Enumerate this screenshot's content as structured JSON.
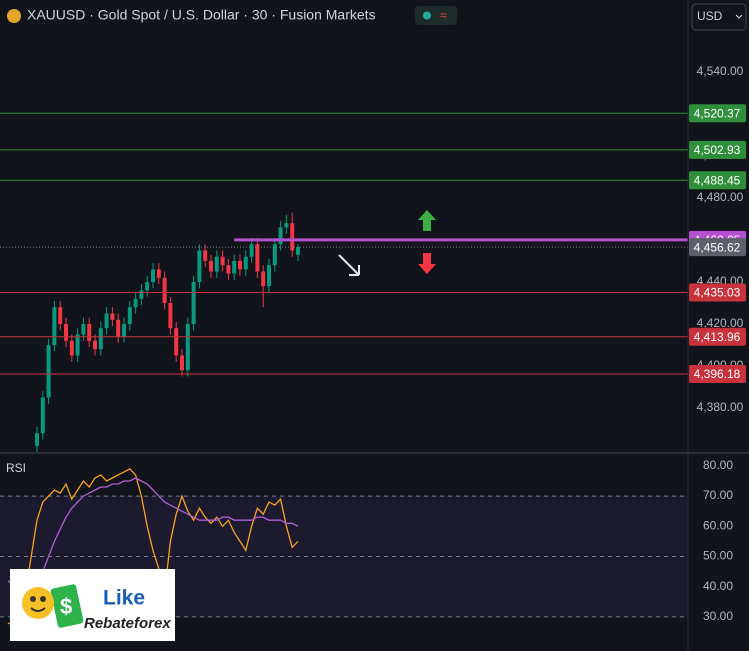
{
  "chart_data": [
    {
      "type": "candlestick",
      "title": "XAUUSD · Gold Spot / U.S. Dollar · 30 · Fusion Markets",
      "currency": "USD",
      "up_color": "#089981",
      "down_color": "#f23645",
      "open": [
        4362,
        4368,
        4385,
        4410,
        4428,
        4420,
        4412,
        4405,
        4415,
        4420,
        4412,
        4408,
        4418,
        4425,
        4422,
        4414,
        4420,
        4428,
        4432,
        4436,
        4440,
        4446,
        4442,
        4430,
        4418,
        4405,
        4398,
        4420,
        4440,
        4455,
        4450,
        4445,
        4452,
        4448,
        4444,
        4450,
        4446,
        4452,
        4458,
        4445,
        4438,
        4448,
        4458,
        4466,
        4468,
        4453
      ],
      "high": [
        4371,
        4388,
        4413,
        4431,
        4431,
        4423,
        4415,
        4418,
        4423,
        4423,
        4415,
        4421,
        4428,
        4428,
        4425,
        4423,
        4431,
        4435,
        4439,
        4443,
        4449,
        4449,
        4445,
        4433,
        4421,
        4408,
        4423,
        4443,
        4458,
        4458,
        4453,
        4455,
        4455,
        4451,
        4453,
        4453,
        4455,
        4461,
        4461,
        4448,
        4451,
        4461,
        4469,
        4472,
        4473,
        4458
      ],
      "low": [
        4359,
        4365,
        4382,
        4407,
        4417,
        4409,
        4402,
        4402,
        4412,
        4409,
        4405,
        4405,
        4415,
        4419,
        4411,
        4411,
        4417,
        4425,
        4429,
        4433,
        4437,
        4439,
        4427,
        4415,
        4402,
        4395,
        4395,
        4417,
        4437,
        4447,
        4442,
        4442,
        4445,
        4441,
        4441,
        4443,
        4443,
        4449,
        4442,
        4428,
        4435,
        4445,
        4455,
        4463,
        4452,
        4450
      ],
      "close": [
        4368,
        4385,
        4410,
        4428,
        4420,
        4412,
        4405,
        4415,
        4420,
        4412,
        4408,
        4418,
        4425,
        4422,
        4414,
        4420,
        4428,
        4432,
        4436,
        4440,
        4446,
        4442,
        4430,
        4418,
        4405,
        4398,
        4420,
        4440,
        4455,
        4450,
        4445,
        4452,
        4448,
        4444,
        4450,
        4446,
        4452,
        4458,
        4445,
        4438,
        4448,
        4458,
        4466,
        4468,
        4455,
        4456.62
      ],
      "ylim": [
        4359.05,
        4574.29
      ],
      "yticks": [
        {
          "value": 4380,
          "label": "4,380.00"
        },
        {
          "value": 4400,
          "label": "4,400.00"
        },
        {
          "value": 4420,
          "label": "4,420.00"
        },
        {
          "value": 4440,
          "label": "4,440.00"
        },
        {
          "value": 4460,
          "label": "4,460.00"
        },
        {
          "value": 4480,
          "label": "4,480.00"
        },
        {
          "value": 4500,
          "label": "4,500.00"
        },
        {
          "value": 4520,
          "label": "4,520.00"
        },
        {
          "value": 4540,
          "label": "4,540.00"
        }
      ],
      "levels": [
        {
          "value": 4520.37,
          "label": "4,520.37",
          "color": "#2f8f3a"
        },
        {
          "value": 4502.93,
          "label": "4,502.93",
          "color": "#2f8f3a"
        },
        {
          "value": 4488.45,
          "label": "4,488.45",
          "color": "#2f8f3a"
        },
        {
          "value": 4460.05,
          "label": "4,460.05",
          "color": "#b34fd0"
        },
        {
          "value": 4435.03,
          "label": "4,435.03",
          "color": "#c8323c"
        },
        {
          "value": 4413.96,
          "label": "4,413.96",
          "color": "#c8323c"
        },
        {
          "value": 4396.18,
          "label": "4,396.18",
          "color": "#c8323c"
        }
      ],
      "current_price": {
        "value": 4456.62,
        "label": "4,456.62",
        "color": "#5d606b"
      }
    },
    {
      "type": "line",
      "title": "RSI",
      "series": [
        {
          "color": "#f7a21b",
          "values": [
            28,
            27,
            30,
            38,
            50,
            62,
            68,
            70,
            72,
            71,
            74,
            69,
            72,
            75,
            73,
            76,
            77,
            75,
            76,
            77,
            78,
            79,
            77,
            70,
            60,
            52,
            46,
            38,
            55,
            64,
            70,
            65,
            62,
            66,
            63,
            61,
            63,
            60,
            62,
            58,
            55,
            52,
            60,
            66,
            64,
            68,
            67,
            69,
            60,
            53,
            55
          ]
        },
        {
          "color": "#b05ed6",
          "values": [
            42,
            40,
            38,
            37,
            38,
            41,
            45,
            50,
            55,
            59,
            63,
            66,
            68,
            70,
            71,
            72,
            73,
            73,
            74,
            74,
            75,
            75,
            76,
            75,
            74,
            72,
            70,
            68,
            67,
            66,
            65,
            64,
            63,
            62,
            62,
            62,
            62,
            63,
            63,
            62,
            62,
            62,
            62,
            63,
            63,
            62,
            62,
            62,
            61,
            61,
            60
          ]
        }
      ],
      "band": [
        30,
        70
      ],
      "midline": 50,
      "ylim": [
        18.7,
        83.6
      ],
      "yticks": [
        {
          "value": 30,
          "label": "30.00"
        },
        {
          "value": 40,
          "label": "40.00"
        },
        {
          "value": 50,
          "label": "50.00"
        },
        {
          "value": 60,
          "label": "60.00"
        },
        {
          "value": 70,
          "label": "70.00"
        },
        {
          "value": 80,
          "label": "80.00"
        }
      ]
    }
  ],
  "logo": {
    "title": "Like",
    "subtitle": "Rebateforex"
  }
}
